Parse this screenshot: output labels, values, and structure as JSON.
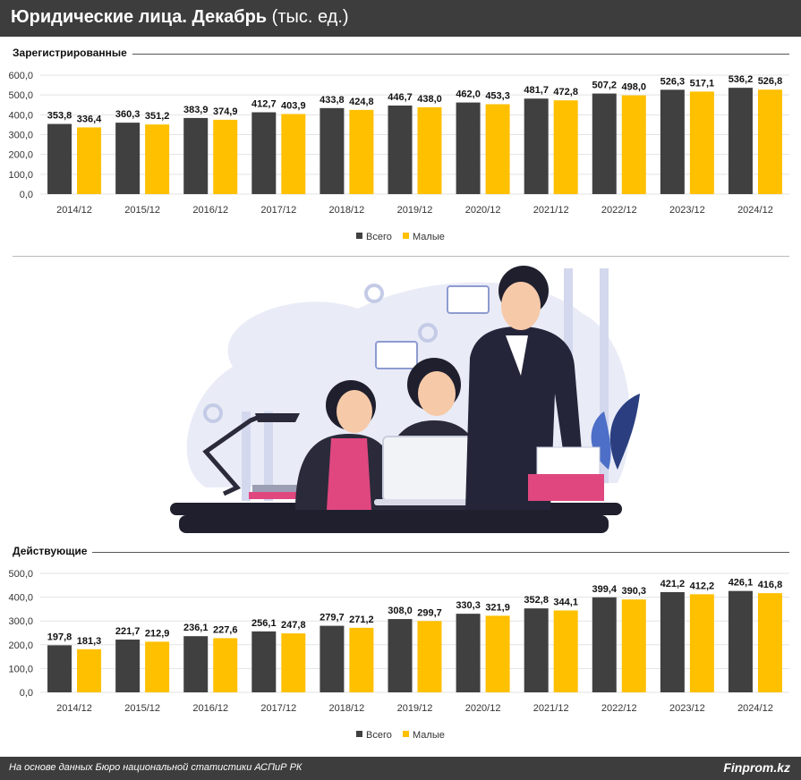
{
  "header": {
    "title": "Юридические лица. Декабрь",
    "unit": "(тыс. ед.)"
  },
  "colors": {
    "total": "#404040",
    "small": "#ffc000",
    "header_bg": "#3d3d3d"
  },
  "chart_data": [
    {
      "type": "bar",
      "title": "Зарегистрированные",
      "categories": [
        "2014/12",
        "2015/12",
        "2016/12",
        "2017/12",
        "2018/12",
        "2019/12",
        "2020/12",
        "2021/12",
        "2022/12",
        "2023/12",
        "2024/12"
      ],
      "series": [
        {
          "name": "Всего",
          "values": [
            353.8,
            360.3,
            383.9,
            412.7,
            433.8,
            446.7,
            462.0,
            481.7,
            507.2,
            526.3,
            536.2
          ],
          "labels": [
            "353,8",
            "360,3",
            "383,9",
            "412,7",
            "433,8",
            "446,7",
            "462,0",
            "481,7",
            "507,2",
            "526,3",
            "536,2"
          ]
        },
        {
          "name": "Малые",
          "values": [
            336.4,
            351.2,
            374.9,
            403.9,
            424.8,
            438.0,
            453.3,
            472.8,
            498.0,
            517.1,
            526.8
          ],
          "labels": [
            "336,4",
            "351,2",
            "374,9",
            "403,9",
            "424,8",
            "438,0",
            "453,3",
            "472,8",
            "498,0",
            "517,1",
            "526,8"
          ]
        }
      ],
      "ylim": [
        0,
        600
      ],
      "yticks": [
        "0,0",
        "100,0",
        "200,0",
        "300,0",
        "400,0",
        "500,0",
        "600,0"
      ],
      "legend": "bottom-center"
    },
    {
      "type": "bar",
      "title": "Действующие",
      "categories": [
        "2014/12",
        "2015/12",
        "2016/12",
        "2017/12",
        "2018/12",
        "2019/12",
        "2020/12",
        "2021/12",
        "2022/12",
        "2023/12",
        "2024/12"
      ],
      "series": [
        {
          "name": "Всего",
          "values": [
            197.8,
            221.7,
            236.1,
            256.1,
            279.7,
            308.0,
            330.3,
            352.8,
            399.4,
            421.2,
            426.1
          ],
          "labels": [
            "197,8",
            "221,7",
            "236,1",
            "256,1",
            "279,7",
            "308,0",
            "330,3",
            "352,8",
            "399,4",
            "421,2",
            "426,1"
          ]
        },
        {
          "name": "Малые",
          "values": [
            181.3,
            212.9,
            227.6,
            247.8,
            271.2,
            299.7,
            321.9,
            344.1,
            390.3,
            412.2,
            416.8
          ],
          "labels": [
            "181,3",
            "212,9",
            "227,6",
            "247,8",
            "271,2",
            "299,7",
            "321,9",
            "344,1",
            "390,3",
            "412,2",
            "416,8"
          ]
        }
      ],
      "ylim": [
        0,
        500
      ],
      "yticks": [
        "0,0",
        "100,0",
        "200,0",
        "300,0",
        "400,0",
        "500,0"
      ],
      "legend": "bottom-center"
    }
  ],
  "footer": {
    "source": "На основе данных Бюро национальной статистики АСПиР РК",
    "brand": "Finprom.kz"
  }
}
